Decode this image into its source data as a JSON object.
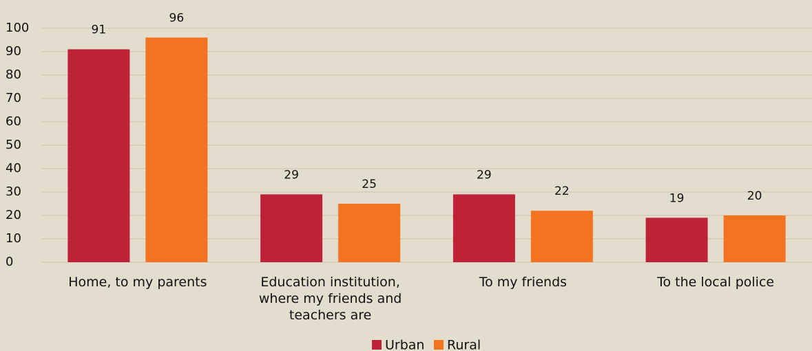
{
  "chart_data": {
    "type": "bar",
    "categories": [
      "Home, to my parents",
      "Education institution, where my friends and teachers are",
      "To my friends",
      "To the local police"
    ],
    "series": [
      {
        "name": "Urban",
        "color": "#be2236",
        "values": [
          91,
          29,
          29,
          19
        ]
      },
      {
        "name": "Rural",
        "color": "#f37321",
        "values": [
          96,
          25,
          22,
          20
        ]
      }
    ],
    "ylim": [
      0,
      100
    ],
    "yticks": [
      0,
      10,
      20,
      30,
      40,
      50,
      60,
      70,
      80,
      90,
      100
    ],
    "grid": true,
    "legend": "bottom"
  }
}
